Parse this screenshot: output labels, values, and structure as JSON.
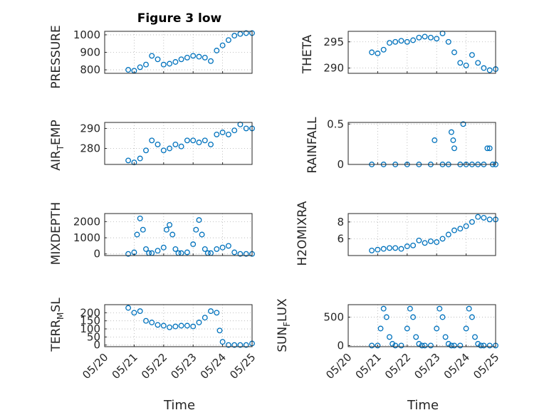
{
  "chart_data": [
    {
      "type": "scatter",
      "title": "Figure 3 low",
      "ylabel": "PRESSURE",
      "xlim": [
        0,
        5
      ],
      "ylim": [
        780,
        1020
      ],
      "yticks": [
        800,
        900,
        1000
      ],
      "xticks": [
        0,
        1,
        2,
        3,
        4,
        5
      ],
      "xticklabels": [
        "05/20",
        "05/21",
        "05/22",
        "05/23",
        "05/24",
        "05/25"
      ],
      "x": [
        0.8,
        1.0,
        1.2,
        1.4,
        1.6,
        1.8,
        2.0,
        2.2,
        2.4,
        2.6,
        2.8,
        3.0,
        3.2,
        3.4,
        3.6,
        3.8,
        4.0,
        4.2,
        4.4,
        4.6,
        4.8,
        5.0
      ],
      "y": [
        800,
        795,
        815,
        830,
        880,
        860,
        830,
        835,
        845,
        860,
        870,
        880,
        875,
        870,
        850,
        910,
        940,
        970,
        995,
        1005,
        1010,
        1010
      ]
    },
    {
      "type": "scatter",
      "title": "",
      "ylabel": "THETA",
      "xlim": [
        0,
        5
      ],
      "ylim": [
        289,
        297
      ],
      "yticks": [
        290,
        295
      ],
      "xticks": [
        0,
        1,
        2,
        3,
        4,
        5
      ],
      "xticklabels": [
        "05/20",
        "05/21",
        "05/22",
        "05/23",
        "05/24",
        "05/25"
      ],
      "x": [
        0.8,
        1.0,
        1.2,
        1.4,
        1.6,
        1.8,
        2.0,
        2.2,
        2.4,
        2.6,
        2.8,
        3.0,
        3.2,
        3.4,
        3.6,
        3.8,
        4.0,
        4.2,
        4.4,
        4.6,
        4.8,
        5.0
      ],
      "y": [
        293,
        292.8,
        293.5,
        294.8,
        295,
        295.2,
        295,
        295.3,
        295.8,
        296,
        295.8,
        295.6,
        296.6,
        295,
        293,
        291,
        290.5,
        292.5,
        291,
        290,
        289.6,
        289.8
      ]
    },
    {
      "type": "scatter",
      "title": "",
      "ylabel": "AIR_TEMP",
      "xlim": [
        0,
        5
      ],
      "ylim": [
        272,
        293
      ],
      "yticks": [
        280,
        290
      ],
      "xticks": [
        0,
        1,
        2,
        3,
        4,
        5
      ],
      "xticklabels": [
        "05/20",
        "05/21",
        "05/22",
        "05/23",
        "05/24",
        "05/25"
      ],
      "x": [
        0.8,
        1.0,
        1.2,
        1.4,
        1.6,
        1.8,
        2.0,
        2.2,
        2.4,
        2.6,
        2.8,
        3.0,
        3.2,
        3.4,
        3.6,
        3.8,
        4.0,
        4.2,
        4.4,
        4.6,
        4.8,
        5.0
      ],
      "y": [
        274,
        273,
        275,
        279,
        284,
        282,
        279,
        280,
        282,
        281,
        284,
        284,
        283,
        284,
        282,
        287,
        288,
        287,
        289,
        292,
        290,
        290
      ]
    },
    {
      "type": "scatter",
      "title": "",
      "ylabel": "RAINFALL",
      "xlim": [
        0,
        5
      ],
      "ylim": [
        0,
        0.52
      ],
      "yticks": [
        0,
        0.5
      ],
      "xticks": [
        0,
        1,
        2,
        3,
        4,
        5
      ],
      "xticklabels": [
        "05/20",
        "05/21",
        "05/22",
        "05/23",
        "05/24",
        "05/25"
      ],
      "x": [
        0.8,
        1.2,
        1.6,
        2.0,
        2.4,
        2.8,
        2.93,
        3.2,
        3.4,
        3.5,
        3.56,
        3.6,
        3.8,
        3.9,
        4.0,
        4.2,
        4.4,
        4.6,
        4.72,
        4.8,
        4.9,
        5.0
      ],
      "y": [
        0,
        0,
        0,
        0,
        0,
        0,
        0.3,
        0,
        0,
        0.4,
        0.3,
        0.2,
        0,
        0.5,
        0,
        0,
        0,
        0,
        0.2,
        0.2,
        0,
        0
      ]
    },
    {
      "type": "scatter",
      "title": "",
      "ylabel": "MIXDEPTH",
      "xlim": [
        0,
        5
      ],
      "ylim": [
        -100,
        2500
      ],
      "yticks": [
        0,
        1000,
        2000
      ],
      "xticks": [
        0,
        1,
        2,
        3,
        4,
        5
      ],
      "xticklabels": [
        "05/20",
        "05/21",
        "05/22",
        "05/23",
        "05/24",
        "05/25"
      ],
      "x": [
        0.8,
        1.0,
        1.1,
        1.2,
        1.3,
        1.4,
        1.5,
        1.6,
        1.8,
        2.0,
        2.1,
        2.2,
        2.3,
        2.4,
        2.5,
        2.6,
        2.8,
        3.0,
        3.1,
        3.2,
        3.3,
        3.4,
        3.5,
        3.6,
        3.8,
        4.0,
        4.2,
        4.4,
        4.6,
        4.8,
        5.0
      ],
      "y": [
        0,
        100,
        1200,
        2200,
        1500,
        300,
        50,
        50,
        200,
        400,
        1500,
        1800,
        1200,
        300,
        50,
        50,
        100,
        600,
        1500,
        2100,
        1200,
        300,
        50,
        50,
        300,
        400,
        500,
        100,
        0,
        0,
        0
      ]
    },
    {
      "type": "scatter",
      "title": "",
      "ylabel": "H2OMIXRA",
      "xlim": [
        0,
        5
      ],
      "ylim": [
        4,
        9
      ],
      "yticks": [
        6,
        8
      ],
      "xticks": [
        0,
        1,
        2,
        3,
        4,
        5
      ],
      "xticklabels": [
        "05/20",
        "05/21",
        "05/22",
        "05/23",
        "05/24",
        "05/25"
      ],
      "x": [
        0.8,
        1.0,
        1.2,
        1.4,
        1.6,
        1.8,
        2.0,
        2.2,
        2.4,
        2.6,
        2.8,
        3.0,
        3.2,
        3.4,
        3.6,
        3.8,
        4.0,
        4.2,
        4.4,
        4.6,
        4.8,
        5.0
      ],
      "y": [
        4.6,
        4.7,
        4.8,
        4.9,
        4.9,
        4.8,
        5.1,
        5.2,
        5.8,
        5.5,
        5.7,
        5.6,
        6.0,
        6.5,
        7.0,
        7.2,
        7.5,
        8.0,
        8.6,
        8.5,
        8.3,
        8.3
      ]
    },
    {
      "type": "scatter",
      "title": "",
      "ylabel": "TERR_MSL",
      "xlim": [
        0,
        5
      ],
      "ylim": [
        -10,
        250
      ],
      "yticks": [
        0,
        50,
        100,
        150,
        200
      ],
      "xticks": [
        0,
        1,
        2,
        3,
        4,
        5
      ],
      "xticklabels": [
        "05/20",
        "05/21",
        "05/22",
        "05/23",
        "05/24",
        "05/25"
      ],
      "x": [
        0.8,
        1.0,
        1.2,
        1.4,
        1.6,
        1.8,
        2.0,
        2.2,
        2.4,
        2.6,
        2.8,
        3.0,
        3.2,
        3.4,
        3.6,
        3.8,
        3.9,
        4.0,
        4.2,
        4.4,
        4.6,
        4.8,
        5.0
      ],
      "y": [
        230,
        200,
        210,
        150,
        140,
        125,
        120,
        110,
        115,
        120,
        120,
        115,
        140,
        170,
        210,
        200,
        90,
        20,
        0,
        0,
        0,
        0,
        10
      ]
    },
    {
      "type": "scatter",
      "title": "",
      "ylabel": "SUN_FLUX",
      "xlim": [
        0,
        5
      ],
      "ylim": [
        -20,
        720
      ],
      "yticks": [
        0,
        500
      ],
      "xticks": [
        0,
        1,
        2,
        3,
        4,
        5
      ],
      "xticklabels": [
        "05/20",
        "05/21",
        "05/22",
        "05/23",
        "05/24",
        "05/25"
      ],
      "x": [
        0.8,
        1.0,
        1.1,
        1.2,
        1.3,
        1.4,
        1.5,
        1.6,
        1.8,
        2.0,
        2.1,
        2.2,
        2.3,
        2.4,
        2.5,
        2.6,
        2.8,
        3.0,
        3.1,
        3.2,
        3.3,
        3.4,
        3.5,
        3.6,
        3.8,
        4.0,
        4.1,
        4.2,
        4.3,
        4.4,
        4.5,
        4.6,
        4.8,
        5.0
      ],
      "y": [
        0,
        0,
        300,
        650,
        500,
        150,
        30,
        0,
        0,
        300,
        650,
        500,
        150,
        30,
        0,
        0,
        0,
        300,
        650,
        500,
        150,
        30,
        0,
        0,
        0,
        300,
        650,
        500,
        150,
        30,
        0,
        0,
        0,
        0
      ]
    }
  ],
  "xlabel": "Time"
}
